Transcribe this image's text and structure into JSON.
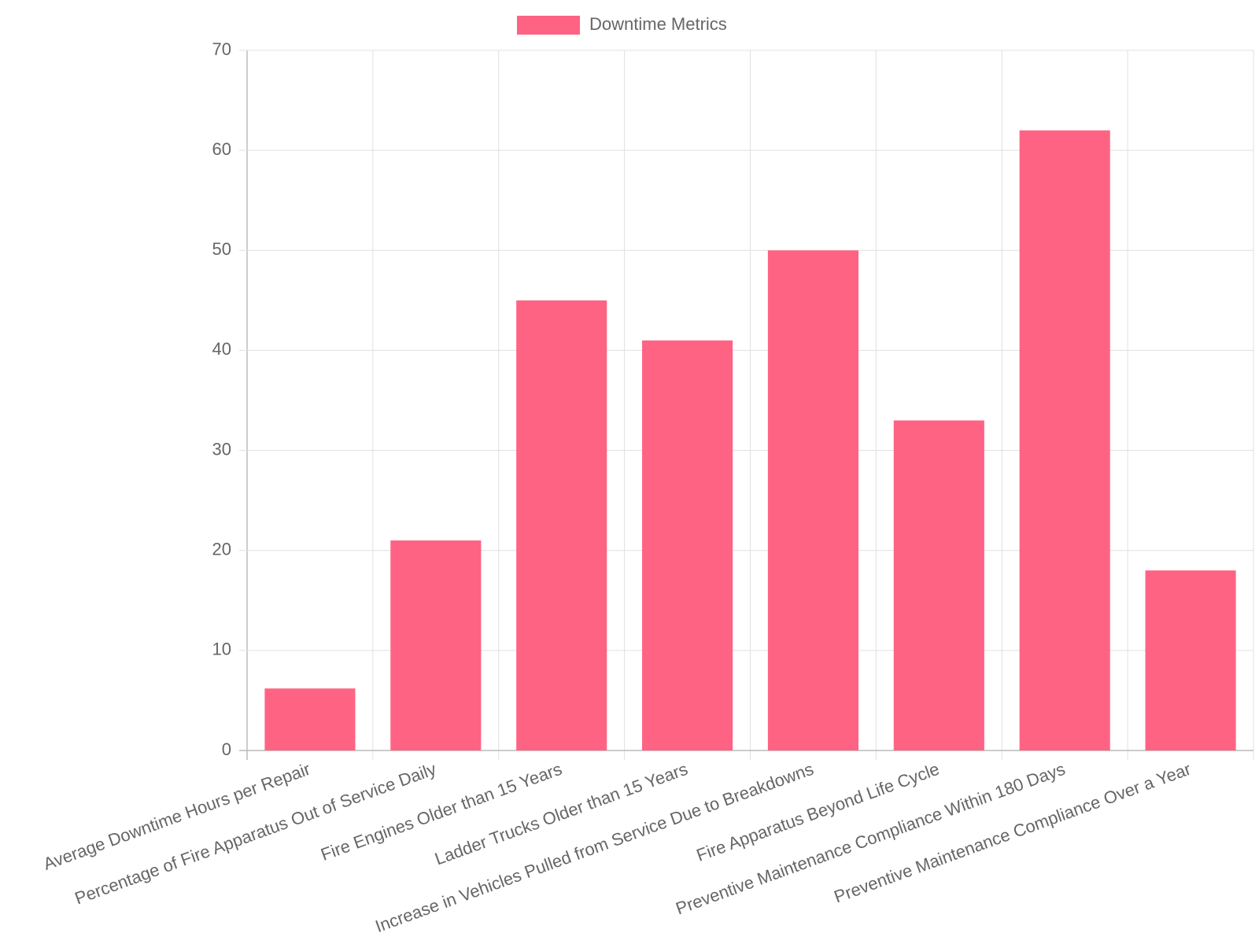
{
  "chart_data": {
    "type": "bar",
    "categories": [
      "Average Downtime Hours per Repair",
      "Percentage of Fire Apparatus Out of Service Daily",
      "Fire Engines Older than 15 Years",
      "Ladder Trucks Older than 15 Years",
      "Increase in Vehicles Pulled from Service Due to Breakdowns",
      "Fire Apparatus Beyond Life Cycle",
      "Preventive Maintenance Compliance Within 180 Days",
      "Preventive Maintenance Compliance Over a Year"
    ],
    "series": [
      {
        "name": "Downtime Metrics",
        "color": "#ff6384",
        "values": [
          6.2,
          21,
          45,
          41,
          50,
          33,
          62,
          18
        ]
      }
    ],
    "ylim": [
      0,
      70
    ],
    "yticks": [
      0,
      10,
      20,
      30,
      40,
      50,
      60,
      70
    ],
    "grid": true,
    "legend": "top"
  }
}
